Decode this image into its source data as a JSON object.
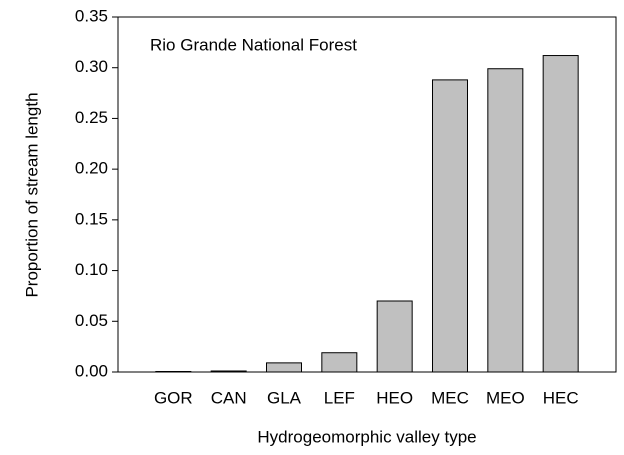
{
  "chart_data": {
    "type": "bar",
    "title": "Rio Grande National Forest",
    "x_label": "Hydrogeomorphic valley type",
    "y_label": "Proportion of stream length",
    "categories": [
      "GOR",
      "CAN",
      "GLA",
      "LEF",
      "HEO",
      "MEC",
      "MEO",
      "HEC"
    ],
    "values": [
      0.0005,
      0.001,
      0.009,
      0.019,
      0.07,
      0.288,
      0.299,
      0.312
    ],
    "color": "#c0c0c0",
    "ylim": [
      0,
      0.35
    ],
    "yticks": [
      {
        "value": 0,
        "label": "0.00"
      },
      {
        "value": 0.05,
        "label": "0.05"
      },
      {
        "value": 0.1,
        "label": "0.10"
      },
      {
        "value": 0.15,
        "label": "0.15"
      },
      {
        "value": 0.2,
        "label": "0.20"
      },
      {
        "value": 0.25,
        "label": "0.25"
      },
      {
        "value": 0.3,
        "label": "0.30"
      },
      {
        "value": 0.35,
        "label": "0.35"
      }
    ],
    "grid": false
  }
}
